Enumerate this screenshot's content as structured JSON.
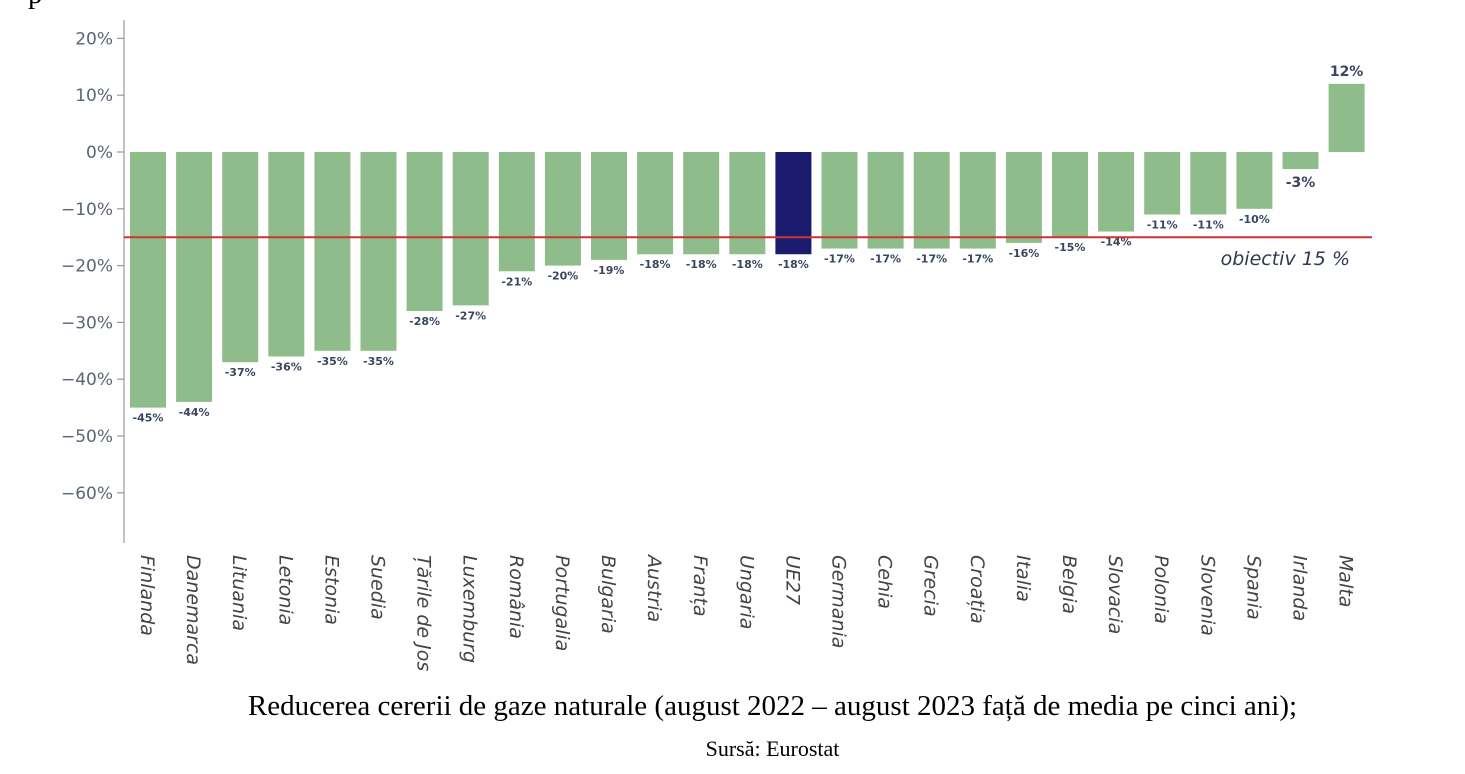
{
  "chart_data": {
    "type": "bar",
    "categories": [
      "Finlanda",
      "Danemarca",
      "Lituania",
      "Letonia",
      "Estonia",
      "Suedia",
      "Țările de Jos",
      "Luxemburg",
      "România",
      "Portugalia",
      "Bulgaria",
      "Austria",
      "Franța",
      "Ungaria",
      "UE27",
      "Germania",
      "Cehia",
      "Grecia",
      "Croația",
      "Italia",
      "Belgia",
      "Slovacia",
      "Polonia",
      "Slovenia",
      "Spania",
      "Irlanda",
      "Malta"
    ],
    "values": [
      -45,
      -44,
      -37,
      -36,
      -35,
      -35,
      -28,
      -27,
      -21,
      -20,
      -19,
      -18,
      -18,
      -18,
      -18,
      -17,
      -17,
      -17,
      -17,
      -16,
      -15,
      -14,
      -11,
      -11,
      -10,
      -3,
      12
    ],
    "data_labels": [
      "-45%",
      "-44%",
      "-37%",
      "-36%",
      "-35%",
      "-35%",
      "-28%",
      "-27%",
      "-21%",
      "-20%",
      "-19%",
      "-18%",
      "-18%",
      "-18%",
      "-18%",
      "-17%",
      "-17%",
      "-17%",
      "-17%",
      "-16%",
      "-15%",
      "-14%",
      "-11%",
      "-11%",
      "-10%",
      "-3%",
      "12%"
    ],
    "highlight_category": "UE27",
    "y_ticks": [
      20,
      10,
      0,
      -10,
      -20,
      -30,
      -40,
      -50,
      -60
    ],
    "y_tick_labels": [
      "20%",
      "10%",
      "0%",
      "−10%",
      "−20%",
      "−30%",
      "−40%",
      "−50%",
      "−60%"
    ],
    "ylim": [
      -69,
      23
    ],
    "target_value": -15,
    "target_label": "obiectiv 15 %",
    "grid": false,
    "colors": {
      "bar": "#8fbc8b",
      "highlight": "#1a1a6e",
      "target_line": "#cc3333"
    }
  },
  "caption": {
    "title": "Reducerea cererii de gaze naturale (august 2022 – august 2023 față de media pe cinci ani);",
    "source": "Sursă: Eurostat"
  }
}
